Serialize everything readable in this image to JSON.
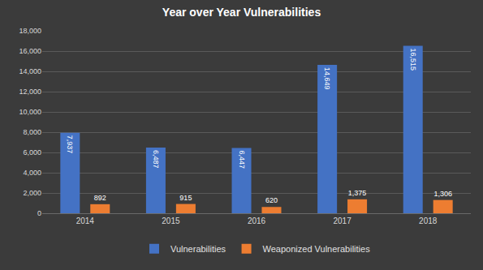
{
  "chart_data": {
    "type": "bar",
    "title": "Year over Year Vulnerabilities",
    "categories": [
      "2014",
      "2015",
      "2016",
      "2017",
      "2018"
    ],
    "series": [
      {
        "name": "Vulnerabilities",
        "color": "#4472c4",
        "values": [
          7937,
          6487,
          6447,
          14649,
          16515
        ],
        "value_labels": [
          "7,937",
          "6,487",
          "6,447",
          "14,649",
          "16,515"
        ]
      },
      {
        "name": "Weaponized Vulnerabilities",
        "color": "#ed7d31",
        "values": [
          892,
          915,
          620,
          1375,
          1306
        ],
        "value_labels": [
          "892",
          "915",
          "620",
          "1,375",
          "1,306"
        ]
      }
    ],
    "ylim": [
      0,
      18000
    ],
    "yticks": [
      0,
      {
        "value": 2000,
        "label": "2,000"
      },
      {
        "value": 4000,
        "label": "4,000"
      },
      {
        "value": 6000,
        "label": "6,000"
      },
      {
        "value": 8000,
        "label": "8,000"
      },
      {
        "value": 10000,
        "label": "10,000"
      },
      {
        "value": 12000,
        "label": "12,000"
      },
      {
        "value": 14000,
        "label": "14,000"
      },
      {
        "value": 16000,
        "label": "16,000"
      },
      {
        "value": 18000,
        "label": "18,000"
      }
    ],
    "grid": true,
    "legend": "bottom",
    "data_labels": true
  }
}
